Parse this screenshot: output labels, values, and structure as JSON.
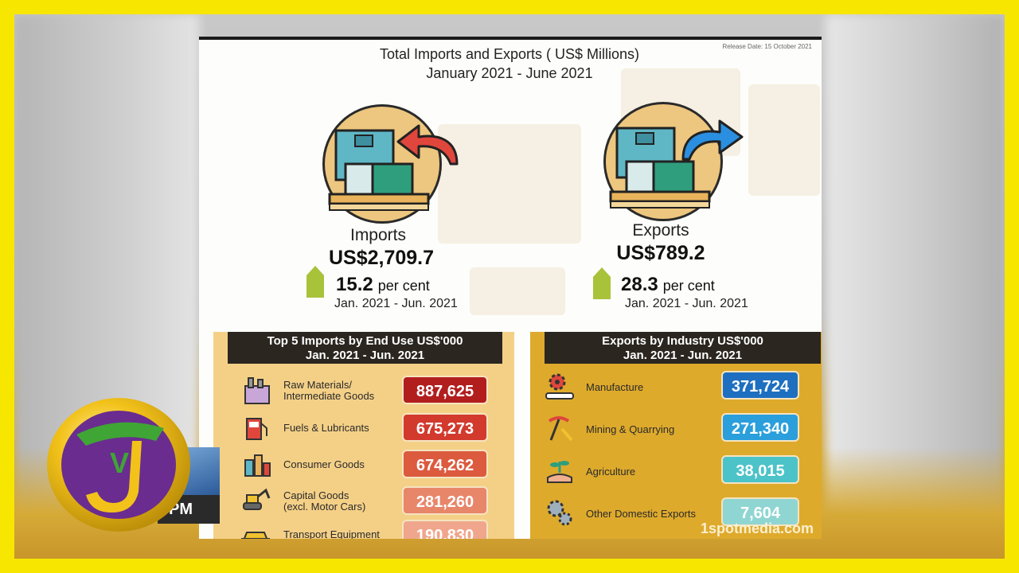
{
  "infographic": {
    "title": "Total Imports and Exports ( US$ Millions)",
    "subtitle": "January 2021 - June 2021",
    "release": "Release Date: 15 October 2021",
    "imports": {
      "label": "Imports",
      "value": "US$2,709.7",
      "change": "15.2",
      "change_unit": "per cent",
      "period": "Jan. 2021 - Jun. 2021"
    },
    "exports": {
      "label": "Exports",
      "value": "US$789.2",
      "change": "28.3",
      "change_unit": "per cent",
      "period": "Jan. 2021 - Jun. 2021"
    }
  },
  "imports_panel": {
    "title": "Top 5 Imports by End Use US$'000",
    "period": "Jan. 2021 - Jun. 2021",
    "rows": [
      {
        "label": "Raw Materials/",
        "label2": "Intermediate Goods",
        "value": "887,625",
        "color": "#b21e1e",
        "icon": "factory-icon"
      },
      {
        "label": "Fuels & Lubricants",
        "label2": "",
        "value": "675,273",
        "color": "#d23a2e",
        "icon": "fuel-pump-icon"
      },
      {
        "label": "Consumer Goods",
        "label2": "",
        "value": "674,262",
        "color": "#dc5a3e",
        "icon": "consumer-goods-icon"
      },
      {
        "label": "Capital Goods",
        "label2": "(excl. Motor Cars)",
        "value": "281,260",
        "color": "#e8866a",
        "icon": "excavator-icon"
      },
      {
        "label": "Transport Equipment",
        "label2": "",
        "value": "190,830",
        "color": "#f0a68c",
        "icon": "car-icon"
      }
    ]
  },
  "exports_panel": {
    "title": "Exports by Industry US$'000",
    "period": "Jan. 2021 - Jun. 2021",
    "rows": [
      {
        "label": "Manufacture",
        "value": "371,724",
        "color": "#1e6fc0",
        "icon": "gear-conveyor-icon"
      },
      {
        "label": "Mining & Quarrying",
        "value": "271,340",
        "color": "#2a9fdc",
        "icon": "pickaxe-icon"
      },
      {
        "label": "Agriculture",
        "value": "38,015",
        "color": "#4cc3c8",
        "icon": "plant-hand-icon"
      },
      {
        "label": "Other Domestic Exports",
        "value": "7,604",
        "color": "#8fd6d2",
        "icon": "gears-icon"
      }
    ]
  },
  "watermark": "1spotmedia.com",
  "broadcast": {
    "ticker_text": "PM",
    "logo": "tvj-logo-icon"
  }
}
